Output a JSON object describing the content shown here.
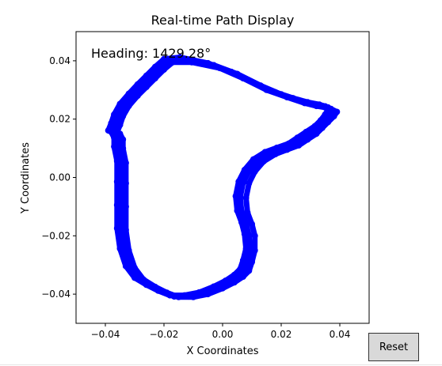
{
  "window": {
    "reset_label": "Reset"
  },
  "chart_data": {
    "type": "line",
    "title": "Real-time Path Display",
    "xlabel": "X Coordinates",
    "ylabel": "Y Coordinates",
    "xlim": [
      -0.05,
      0.05
    ],
    "ylim": [
      -0.05,
      0.05
    ],
    "x_ticks": [
      -0.04,
      -0.02,
      0.0,
      0.02,
      0.04
    ],
    "y_ticks": [
      -0.04,
      -0.02,
      0.0,
      0.02,
      0.04
    ],
    "x_tick_labels": [
      "−0.04",
      "−0.02",
      "0.00",
      "0.02",
      "0.04"
    ],
    "y_tick_labels": [
      "−0.04",
      "−0.02",
      "0.00",
      "0.02",
      "0.04"
    ],
    "annotation": "Heading: 1429.28°",
    "grid": false,
    "color": "#0000ff",
    "marker": "circle",
    "series": [
      {
        "x": [
          -0.0105,
          -0.001,
          0.007,
          0.015,
          0.022,
          0.028,
          0.032,
          0.035,
          0.037,
          0.039,
          0.038,
          0.036,
          0.034,
          0.032,
          0.029,
          0.026,
          0.022,
          0.018,
          0.014,
          0.011,
          0.009,
          0.008,
          0.0085,
          0.01,
          0.011,
          0.011,
          0.01,
          0.009,
          0.007,
          0.004,
          0.0,
          -0.005,
          -0.01,
          -0.015,
          -0.019,
          -0.023,
          -0.027,
          -0.03,
          -0.032,
          -0.033,
          -0.033,
          -0.033,
          -0.033,
          -0.034,
          -0.034,
          -0.035,
          -0.036,
          -0.035,
          -0.034,
          -0.032,
          -0.029,
          -0.026,
          -0.023,
          -0.02,
          -0.017,
          -0.0105
        ],
        "y": [
          0.0395,
          0.0375,
          0.034,
          0.03,
          0.0275,
          0.0255,
          0.0245,
          0.024,
          0.0235,
          0.0225,
          0.021,
          0.019,
          0.017,
          0.015,
          0.013,
          0.011,
          0.0095,
          0.008,
          0.0055,
          0.002,
          -0.002,
          -0.007,
          -0.012,
          -0.016,
          -0.02,
          -0.025,
          -0.029,
          -0.032,
          -0.034,
          -0.036,
          -0.038,
          -0.04,
          -0.041,
          -0.041,
          -0.0395,
          -0.0375,
          -0.035,
          -0.031,
          -0.025,
          -0.018,
          -0.01,
          -0.002,
          0.005,
          0.01,
          0.013,
          0.015,
          0.0155,
          0.018,
          0.021,
          0.0245,
          0.028,
          0.031,
          0.034,
          0.037,
          0.0395,
          0.0395
        ]
      },
      {
        "x": [
          -0.0125,
          -0.003,
          0.005,
          0.013,
          0.02,
          0.026,
          0.03,
          0.034,
          0.036,
          0.0375,
          0.0365,
          0.035,
          0.033,
          0.03,
          0.027,
          0.024,
          0.02,
          0.016,
          0.012,
          0.009,
          0.007,
          0.006,
          0.0065,
          0.008,
          0.009,
          0.0095,
          0.0085,
          0.0075,
          0.0055,
          0.0025,
          -0.0015,
          -0.0065,
          -0.0115,
          -0.0165,
          -0.0205,
          -0.0245,
          -0.0285,
          -0.0315,
          -0.0335,
          -0.0345,
          -0.0345,
          -0.0345,
          -0.0345,
          -0.0355,
          -0.0355,
          -0.0365,
          -0.0375,
          -0.0365,
          -0.0355,
          -0.0335,
          -0.0305,
          -0.0275,
          -0.0245,
          -0.0215,
          -0.0185,
          -0.0125
        ],
        "y": [
          0.0405,
          0.0385,
          0.0355,
          0.0315,
          0.0285,
          0.0265,
          0.0252,
          0.0245,
          0.024,
          0.0228,
          0.0212,
          0.0192,
          0.0172,
          0.0152,
          0.0132,
          0.0112,
          0.0098,
          0.0083,
          0.0058,
          0.0022,
          -0.0018,
          -0.0068,
          -0.0118,
          -0.0158,
          -0.0198,
          -0.0248,
          -0.0288,
          -0.0318,
          -0.0338,
          -0.0358,
          -0.0378,
          -0.0398,
          -0.0408,
          -0.0408,
          -0.0392,
          -0.0372,
          -0.0348,
          -0.0308,
          -0.0248,
          -0.0178,
          -0.0098,
          -0.0018,
          0.0052,
          0.0102,
          0.0132,
          0.0152,
          0.0157,
          0.0182,
          0.0212,
          0.0248,
          0.0283,
          0.0315,
          0.0345,
          0.0375,
          0.0402,
          0.0405
        ]
      },
      {
        "x": [
          -0.0145,
          -0.005,
          0.003,
          0.011,
          0.018,
          0.024,
          0.029,
          0.033,
          0.035,
          0.036,
          0.035,
          0.0335,
          0.0315,
          0.0285,
          0.0255,
          0.0225,
          0.0185,
          0.0145,
          0.0105,
          0.0075,
          0.0055,
          0.0045,
          0.005,
          0.0065,
          0.0075,
          0.008,
          0.007,
          0.006,
          0.004,
          0.001,
          -0.003,
          -0.008,
          -0.013,
          -0.018,
          -0.022,
          -0.026,
          -0.03,
          -0.033,
          -0.035,
          -0.036,
          -0.036,
          -0.036,
          -0.036,
          -0.037,
          -0.037,
          -0.038,
          -0.039,
          -0.038,
          -0.037,
          -0.035,
          -0.032,
          -0.029,
          -0.026,
          -0.023,
          -0.02,
          -0.0145
        ],
        "y": [
          0.0412,
          0.0392,
          0.0362,
          0.0322,
          0.0292,
          0.0272,
          0.0258,
          0.025,
          0.0244,
          0.0232,
          0.0216,
          0.0196,
          0.0176,
          0.0156,
          0.0136,
          0.0116,
          0.0102,
          0.0087,
          0.0062,
          0.0026,
          -0.0014,
          -0.0064,
          -0.0114,
          -0.0154,
          -0.0194,
          -0.0244,
          -0.0284,
          -0.0314,
          -0.0334,
          -0.0354,
          -0.0374,
          -0.0394,
          -0.0404,
          -0.0404,
          -0.0388,
          -0.0368,
          -0.0344,
          -0.0304,
          -0.0244,
          -0.0174,
          -0.0094,
          -0.0014,
          0.0056,
          0.0106,
          0.0136,
          0.0156,
          0.0161,
          0.0186,
          0.0216,
          0.0252,
          0.0287,
          0.0319,
          0.0349,
          0.0379,
          0.0406,
          0.0412
        ]
      }
    ]
  }
}
